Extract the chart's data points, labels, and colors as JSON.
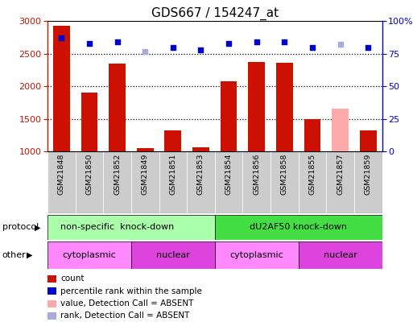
{
  "title": "GDS667 / 154247_at",
  "samples": [
    "GSM21848",
    "GSM21850",
    "GSM21852",
    "GSM21849",
    "GSM21851",
    "GSM21853",
    "GSM21854",
    "GSM21856",
    "GSM21858",
    "GSM21855",
    "GSM21857",
    "GSM21859"
  ],
  "bar_values": [
    2930,
    1900,
    2350,
    1050,
    1320,
    1070,
    2080,
    2370,
    2360,
    1500,
    1660,
    1320
  ],
  "bar_absent": [
    false,
    false,
    false,
    false,
    false,
    false,
    false,
    false,
    false,
    false,
    true,
    false
  ],
  "dot_values": [
    87,
    83,
    84,
    77,
    80,
    78,
    83,
    84,
    84,
    80,
    82,
    80
  ],
  "dot_absent": [
    false,
    false,
    false,
    true,
    false,
    false,
    false,
    false,
    false,
    false,
    true,
    false
  ],
  "bar_color_normal": "#cc1100",
  "bar_color_absent": "#ffaaaa",
  "dot_color_normal": "#0000cc",
  "dot_color_absent": "#aaaadd",
  "ylim_left": [
    1000,
    3000
  ],
  "ylim_right": [
    0,
    100
  ],
  "yticks_left": [
    1000,
    1500,
    2000,
    2500,
    3000
  ],
  "yticks_right": [
    0,
    25,
    50,
    75,
    100
  ],
  "protocol_label_left": "non-specific  knock-down",
  "protocol_label_right": "dU2AF50 knock-down",
  "protocol_color_left": "#aaffaa",
  "protocol_color_right": "#44dd44",
  "other_labels": [
    "cytoplasmic",
    "nuclear",
    "cytoplasmic",
    "nuclear"
  ],
  "other_color_cyto": "#ff88ff",
  "other_color_nucl": "#dd44dd",
  "legend_items": [
    {
      "label": "count",
      "color": "#cc1100"
    },
    {
      "label": "percentile rank within the sample",
      "color": "#0000cc"
    },
    {
      "label": "value, Detection Call = ABSENT",
      "color": "#ffaaaa"
    },
    {
      "label": "rank, Detection Call = ABSENT",
      "color": "#aaaadd"
    }
  ],
  "background_color": "#ffffff",
  "border_color": "#000000",
  "gray_tick_bg": "#cccccc"
}
